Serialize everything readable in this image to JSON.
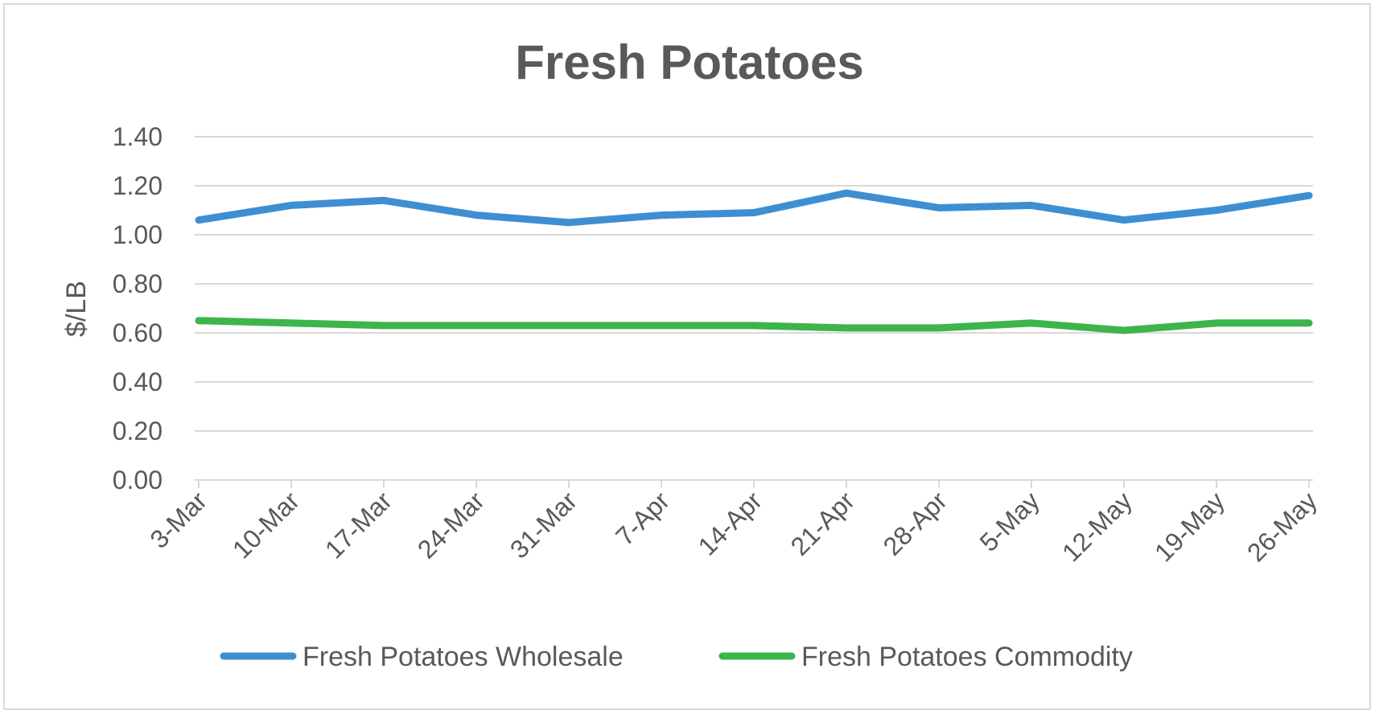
{
  "chart_data": {
    "type": "line",
    "title": "Fresh Potatoes",
    "xlabel": "",
    "ylabel": "$/LB",
    "ylim": [
      0,
      1.4
    ],
    "yticks": [
      "0.00",
      "0.20",
      "0.40",
      "0.60",
      "0.80",
      "1.00",
      "1.20",
      "1.40"
    ],
    "grid": true,
    "legend_position": "bottom",
    "categories": [
      "3-Mar",
      "10-Mar",
      "17-Mar",
      "24-Mar",
      "31-Mar",
      "7-Apr",
      "14-Apr",
      "21-Apr",
      "28-Apr",
      "5-May",
      "12-May",
      "19-May",
      "26-May"
    ],
    "series": [
      {
        "name": "Fresh Potatoes Wholesale",
        "color": "#3d8fd1",
        "values": [
          1.06,
          1.12,
          1.14,
          1.08,
          1.05,
          1.08,
          1.09,
          1.17,
          1.11,
          1.12,
          1.06,
          1.1,
          1.16
        ]
      },
      {
        "name": "Fresh Potatoes Commodity",
        "color": "#3cb54a",
        "values": [
          0.65,
          0.64,
          0.63,
          0.63,
          0.63,
          0.63,
          0.63,
          0.62,
          0.62,
          0.64,
          0.61,
          0.64,
          0.64
        ]
      }
    ]
  }
}
